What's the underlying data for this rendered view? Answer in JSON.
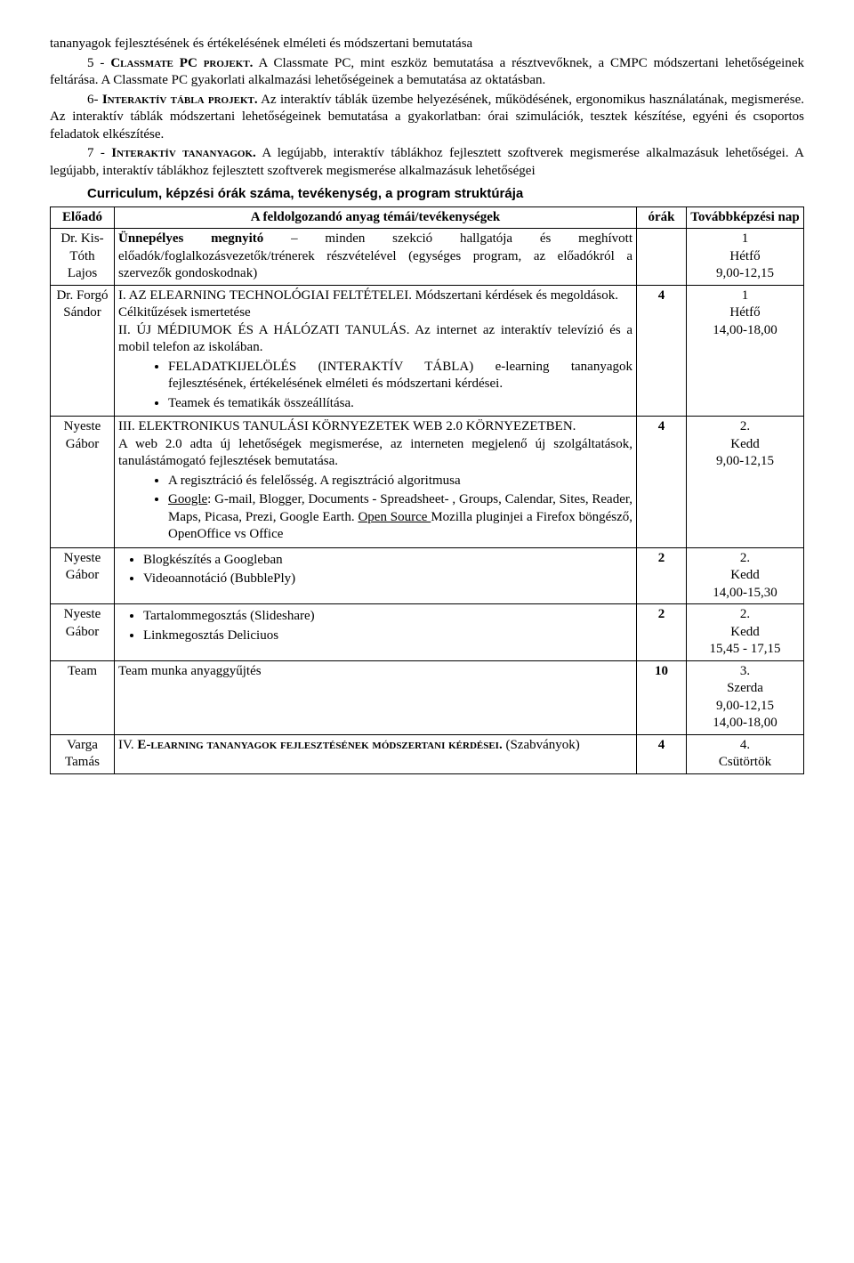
{
  "intro": {
    "p1a": "tananyagok fejlesztésének és értékelésének elméleti és módszertani bemutatása",
    "p1b_label": "5 - ",
    "p1b_sc": "Classmate PC projekt.",
    "p1b_rest": " A Classmate PC, mint eszköz bemutatása a résztvevőknek, a CMPC módszertani lehetőségeinek feltárása. A Classmate PC gyakorlati alkalmazási lehetőségeinek a bemutatása az oktatásban.",
    "p2_label": "6- ",
    "p2_sc": "Interaktív tábla projekt.",
    "p2_rest": " Az interaktív táblák üzembe helyezésének, működésének, ergonomikus használatának, megismerése. Az interaktív táblák módszertani lehetőségeinek bemutatása a gyakorlatban: órai szimulációk, tesztek készítése, egyéni és csoportos feladatok elkészítése.",
    "p3_label": "7 - ",
    "p3_sc": "Interaktív tananyagok.",
    "p3_rest": " A legújabb, interaktív táblákhoz fejlesztett szoftverek megismerése alkalmazásuk lehetőségei. A legújabb, interaktív táblákhoz fejlesztett szoftverek megismerése alkalmazásuk lehetőségei",
    "sec_heading": "Curriculum, képzési órák száma, tevékenység, a program struktúrája"
  },
  "table": {
    "head": {
      "c1": "Előadó",
      "c2": "A feldolgozandó anyag témái/tevékenységek",
      "c3": "órák",
      "c4": "Továbbképzési nap"
    },
    "rows": [
      {
        "presenter": "Dr. Kis-Tóth Lajos",
        "hours": "",
        "schedule": "1\nHétfő\n9,00-12,15",
        "content_bold": "Ünnepélyes megnyitó",
        "content_rest": " – minden szekció hallgatója és meghívott előadók/foglalkozásvezetők/trénerek részvételével (egységes program, az előadókról a szervezők gondoskodnak)"
      },
      {
        "presenter": "Dr. Forgó Sándor",
        "hours": "4",
        "schedule": "1\nHétfő\n14,00-18,00",
        "line1": "I. AZ ELEARNING TECHNOLÓGIAI FELTÉTELEI. Módszertani kérdések és megoldások.",
        "line2": "Célkitűzések ismertetése",
        "line3": "II. ÚJ MÉDIUMOK ÉS A HÁLÓZATI TANULÁS. Az internet az interaktív televízió és a mobil telefon az iskolában.",
        "b1": "FELADATKIJELÖLÉS (INTERAKTÍV TÁBLA) e-learning tananyagok fejlesztésének, értékelésének elméleti és módszertani kérdései.",
        "b2": "Teamek és tematikák összeállítása."
      },
      {
        "presenter": "Nyeste Gábor",
        "hours": "4",
        "schedule": "2.\nKedd\n9,00-12,15",
        "line1": "III. ELEKTRONIKUS TANULÁSI KÖRNYEZETEK WEB 2.0 KÖRNYEZETBEN.",
        "line2": "A web 2.0 adta új lehetőségek megismerése, az interneten megjelenő új szolgáltatások, tanulástámogató fejlesztések bemutatása.",
        "b1": "A regisztráció és felelősség. A regisztráció algoritmusa",
        "b2_u1": "Google",
        "b2_mid": ": G-mail, Blogger, Documents - Spreadsheet- , Groups, Calendar, Sites, Reader, Maps, Picasa, Prezi, Google Earth. ",
        "b2_u2": "Open Source ",
        "b2_end": "Mozilla pluginjei a Firefox böngésző, OpenOffice vs Office"
      },
      {
        "presenter": "Nyeste Gábor",
        "hours": "2",
        "schedule": "2.\nKedd\n14,00-15,30",
        "b1": "Blogkészítés a Googleban",
        "b2": "Videoannotáció (BubblePly)"
      },
      {
        "presenter": "Nyeste Gábor",
        "hours": "2",
        "schedule": "2.\nKedd\n15,45 - 17,15",
        "b1": "Tartalommegosztás (Slideshare)",
        "b2": "Linkmegosztás Deliciuos"
      },
      {
        "presenter": "Team",
        "hours": "10",
        "schedule": "3.\nSzerda\n9,00-12,15\n14,00-18,00",
        "line1": "Team munka anyaggyűjtés"
      },
      {
        "presenter": "Varga Tamás",
        "hours": "4",
        "schedule": "4.\nCsütörtök",
        "line1_pre": "IV. ",
        "line1_sc": "E-learning tananyagok fejlesztésének módszertani kérdései.",
        "line1_post": " (Szabványok)"
      }
    ]
  }
}
